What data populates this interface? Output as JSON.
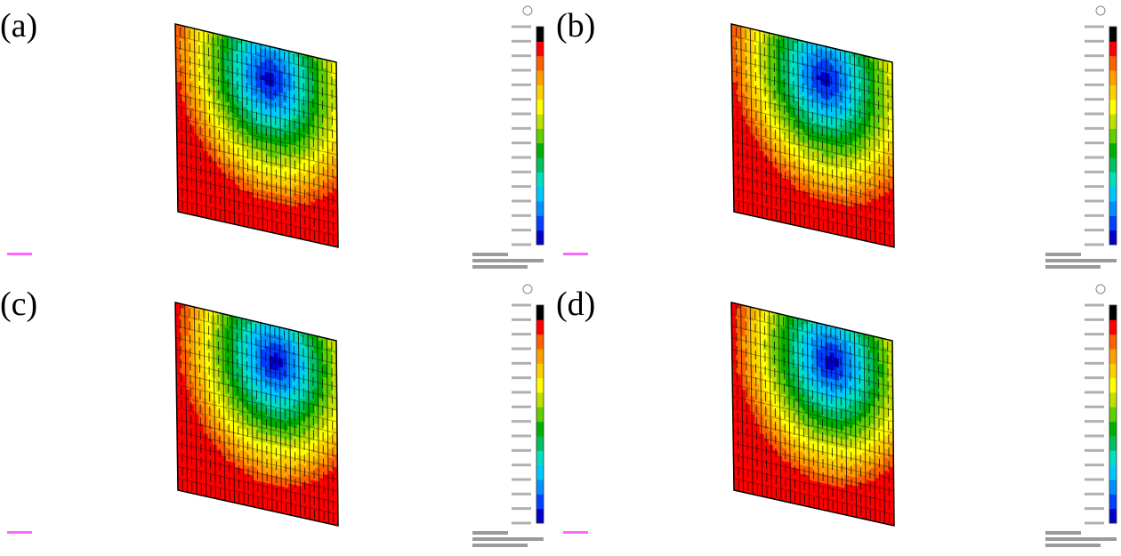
{
  "panels": [
    {
      "label": "(a)",
      "id": "a",
      "variant": 0
    },
    {
      "label": "(b)",
      "id": "b",
      "variant": 1
    },
    {
      "label": "(c)",
      "id": "c",
      "variant": 2
    },
    {
      "label": "(d)",
      "id": "d",
      "variant": 3
    }
  ],
  "colormap": [
    "#0000c8",
    "#0040ff",
    "#0090ff",
    "#00c8ff",
    "#00e0c0",
    "#00c060",
    "#00b000",
    "#60d000",
    "#c0e000",
    "#ffff00",
    "#ffd000",
    "#ffa000",
    "#ff6000",
    "#ff0000",
    "#000000"
  ],
  "colors": {
    "background": "#ffffff",
    "mesh_line": "#000000",
    "triad": "#ff00ff"
  }
}
